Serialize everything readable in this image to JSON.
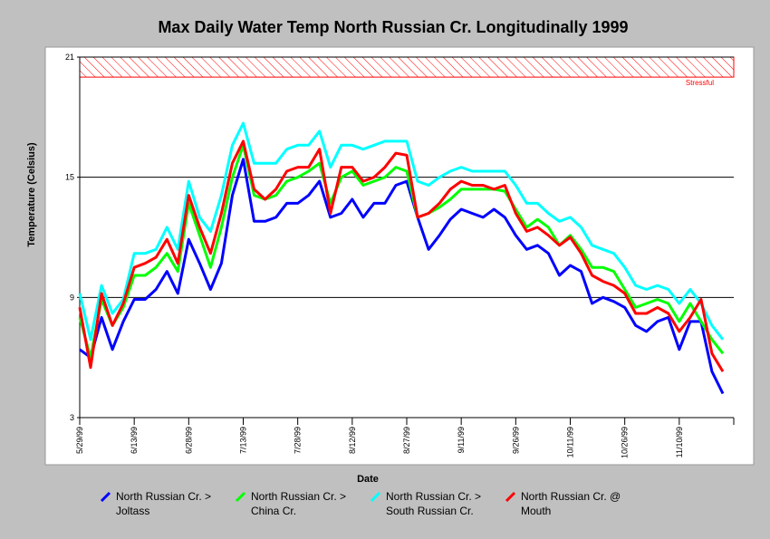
{
  "chart_data": {
    "type": "line",
    "title": "Max Daily Water Temp North Russian Cr. Longitudinally 1999",
    "xlabel": "Date",
    "ylabel": "Temperature (Celsius)",
    "x": [
      "5/29/99",
      "6/1/99",
      "6/4/99",
      "6/7/99",
      "6/10/99",
      "6/13/99",
      "6/16/99",
      "6/19/99",
      "6/22/99",
      "6/25/99",
      "6/28/99",
      "7/1/99",
      "7/4/99",
      "7/7/99",
      "7/10/99",
      "7/13/99",
      "7/16/99",
      "7/19/99",
      "7/22/99",
      "7/25/99",
      "7/28/99",
      "7/31/99",
      "8/3/99",
      "8/6/99",
      "8/9/99",
      "8/12/99",
      "8/15/99",
      "8/18/99",
      "8/21/99",
      "8/24/99",
      "8/27/99",
      "8/30/99",
      "9/2/99",
      "9/5/99",
      "9/8/99",
      "9/11/99",
      "9/14/99",
      "9/17/99",
      "9/20/99",
      "9/23/99",
      "9/26/99",
      "9/29/99",
      "10/2/99",
      "10/5/99",
      "10/8/99",
      "10/11/99",
      "10/14/99",
      "10/17/99",
      "10/20/99",
      "10/23/99",
      "10/26/99",
      "10/29/99",
      "11/1/99",
      "11/4/99",
      "11/7/99",
      "11/10/99",
      "11/13/99",
      "11/16/99",
      "11/19/99",
      "11/22/99"
    ],
    "series": [
      {
        "name": "North Russian Cr. > Joltass",
        "color": "#0000ff",
        "values": [
          6.4,
          6.0,
          8.0,
          6.4,
          7.8,
          8.9,
          8.9,
          9.4,
          10.3,
          9.2,
          11.9,
          10.7,
          9.4,
          10.7,
          14.1,
          15.9,
          12.8,
          12.8,
          13.0,
          13.7,
          13.7,
          14.1,
          14.8,
          13.0,
          13.2,
          13.9,
          13.0,
          13.7,
          13.7,
          14.6,
          14.8,
          13.0,
          11.4,
          12.1,
          12.9,
          13.4,
          13.2,
          13.0,
          13.4,
          13.0,
          12.1,
          11.4,
          11.6,
          11.2,
          10.1,
          10.6,
          10.3,
          8.7,
          9.0,
          8.8,
          8.5,
          7.6,
          7.3,
          7.8,
          8.0,
          6.4,
          7.8,
          7.8,
          5.3,
          4.2
        ]
      },
      {
        "name": "North Russian Cr. > China Cr.",
        "color": "#00ff00",
        "values": [
          8.0,
          6.0,
          8.9,
          7.6,
          8.5,
          10.1,
          10.1,
          10.5,
          11.2,
          10.3,
          13.7,
          12.1,
          10.5,
          12.5,
          15.0,
          16.6,
          14.1,
          13.9,
          14.1,
          14.8,
          15.0,
          15.3,
          15.7,
          13.7,
          15.0,
          15.3,
          14.6,
          14.8,
          15.0,
          15.5,
          15.3,
          13.0,
          13.2,
          13.5,
          13.9,
          14.4,
          14.4,
          14.4,
          14.4,
          14.3,
          13.4,
          12.5,
          12.9,
          12.5,
          11.6,
          12.1,
          11.4,
          10.5,
          10.5,
          10.3,
          9.4,
          8.5,
          8.7,
          8.9,
          8.7,
          7.8,
          8.7,
          7.8,
          6.9,
          6.2
        ]
      },
      {
        "name": "North Russian Cr. > South Russian Cr.",
        "color": "#00ffff",
        "values": [
          9.2,
          6.9,
          9.6,
          8.2,
          8.9,
          11.2,
          11.2,
          11.4,
          12.5,
          11.4,
          14.8,
          13.0,
          12.3,
          14.1,
          16.6,
          17.7,
          15.7,
          15.7,
          15.7,
          16.4,
          16.6,
          16.6,
          17.3,
          15.5,
          16.6,
          16.6,
          16.4,
          16.6,
          16.8,
          16.8,
          16.8,
          14.8,
          14.6,
          15.0,
          15.3,
          15.5,
          15.3,
          15.3,
          15.3,
          15.3,
          14.6,
          13.7,
          13.7,
          13.2,
          12.8,
          13.0,
          12.5,
          11.6,
          11.4,
          11.2,
          10.5,
          9.6,
          9.4,
          9.6,
          9.4,
          8.7,
          9.4,
          8.7,
          7.6,
          6.9
        ]
      },
      {
        "name": "North Russian Cr. @ Mouth",
        "color": "#ff0000",
        "values": [
          8.5,
          5.5,
          9.2,
          7.6,
          8.7,
          10.5,
          10.7,
          11.0,
          11.9,
          10.7,
          14.1,
          12.5,
          11.2,
          13.2,
          15.7,
          16.8,
          14.4,
          13.9,
          14.4,
          15.3,
          15.5,
          15.5,
          16.4,
          13.2,
          15.5,
          15.5,
          14.8,
          15.0,
          15.5,
          16.2,
          16.1,
          13.0,
          13.2,
          13.7,
          14.4,
          14.8,
          14.6,
          14.6,
          14.4,
          14.6,
          13.2,
          12.3,
          12.5,
          12.1,
          11.6,
          12.0,
          11.2,
          10.1,
          9.8,
          9.6,
          9.2,
          8.2,
          8.2,
          8.5,
          8.2,
          7.3,
          8.0,
          8.9,
          6.2,
          5.3
        ]
      }
    ],
    "xlim": [
      "5/29/99",
      "11/25/99"
    ],
    "xticks": [
      "5/29/99",
      "6/13/99",
      "6/28/99",
      "7/13/99",
      "7/28/99",
      "8/12/99",
      "8/27/99",
      "9/11/99",
      "9/26/99",
      "10/11/99",
      "10/26/99",
      "11/10/99"
    ],
    "ylim": [
      3,
      21
    ],
    "yticks": [
      3,
      9,
      15,
      21
    ],
    "grid": true,
    "annotations": [
      {
        "text": "Stressful",
        "ymin": 20,
        "ymax": 21,
        "color": "#ff0000"
      }
    ]
  }
}
